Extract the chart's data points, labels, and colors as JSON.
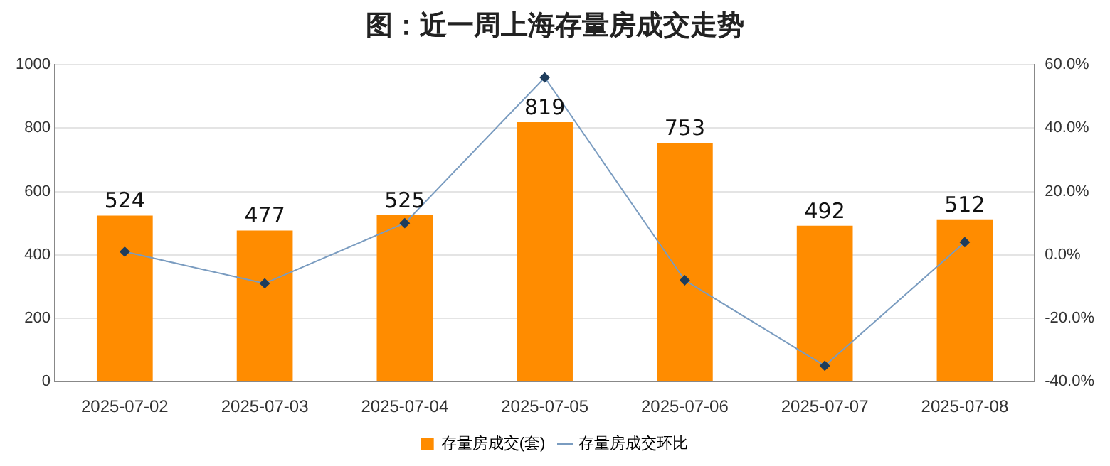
{
  "chart_data": {
    "type": "bar",
    "title": "图：近一周上海存量房成交走势",
    "categories": [
      "2025-07-02",
      "2025-07-03",
      "2025-07-04",
      "2025-07-05",
      "2025-07-06",
      "2025-07-07",
      "2025-07-08"
    ],
    "series": [
      {
        "name": "存量房成交(套)",
        "color": "#ff8c00",
        "values": [
          524,
          477,
          525,
          819,
          753,
          492,
          512
        ],
        "data_labels": true
      },
      {
        "name": "存量房成交环比",
        "type": "line",
        "axis": "y2",
        "color": "#7a9cc0",
        "marker": "diamond",
        "values": [
          1,
          -9,
          10,
          56,
          -8,
          -35,
          4
        ]
      }
    ],
    "ylim": [
      0,
      1000
    ],
    "yticks": [
      0,
      200,
      400,
      600,
      800,
      1000
    ],
    "y2lim": [
      -40,
      60
    ],
    "y2ticks": [
      {
        "value": -40,
        "label": "-40.0%"
      },
      {
        "value": -20,
        "label": "-20.0%"
      },
      {
        "value": 0,
        "label": "0.0%"
      },
      {
        "value": 20,
        "label": "20.0%"
      },
      {
        "value": 40,
        "label": "40.0%"
      },
      {
        "value": 60,
        "label": "60.0%"
      }
    ],
    "grid": "y",
    "legend": "bottom"
  }
}
